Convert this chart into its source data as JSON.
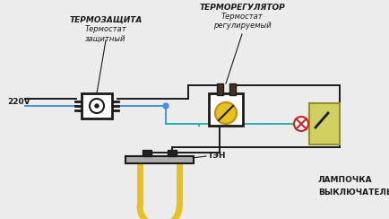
{
  "bg_color": "#ececec",
  "title_termozashita": "ТЕРМОЗАЩИТА",
  "subtitle_termozashita": "Термостат\nзащитный",
  "title_termoregulyator": "ТЕРМОРЕГУЛЯТОР",
  "subtitle_termoregulyator": "Термостат\nрегулируемый",
  "label_220v": "220V",
  "label_ten": "ТЭН",
  "label_lampochka": "ЛАМПОЧКА",
  "label_vyklyuchatel": "ВЫКЛЮЧАТЕЛЬ",
  "wire_blue": "#4a90d9",
  "wire_black": "#1a1a1a",
  "wire_yellow": "#e8c020",
  "wire_teal": "#2ab0b0",
  "lamp_cross_color": "#cc2222",
  "switch_box_color": "#d0d060",
  "switch_border_color": "#909030"
}
